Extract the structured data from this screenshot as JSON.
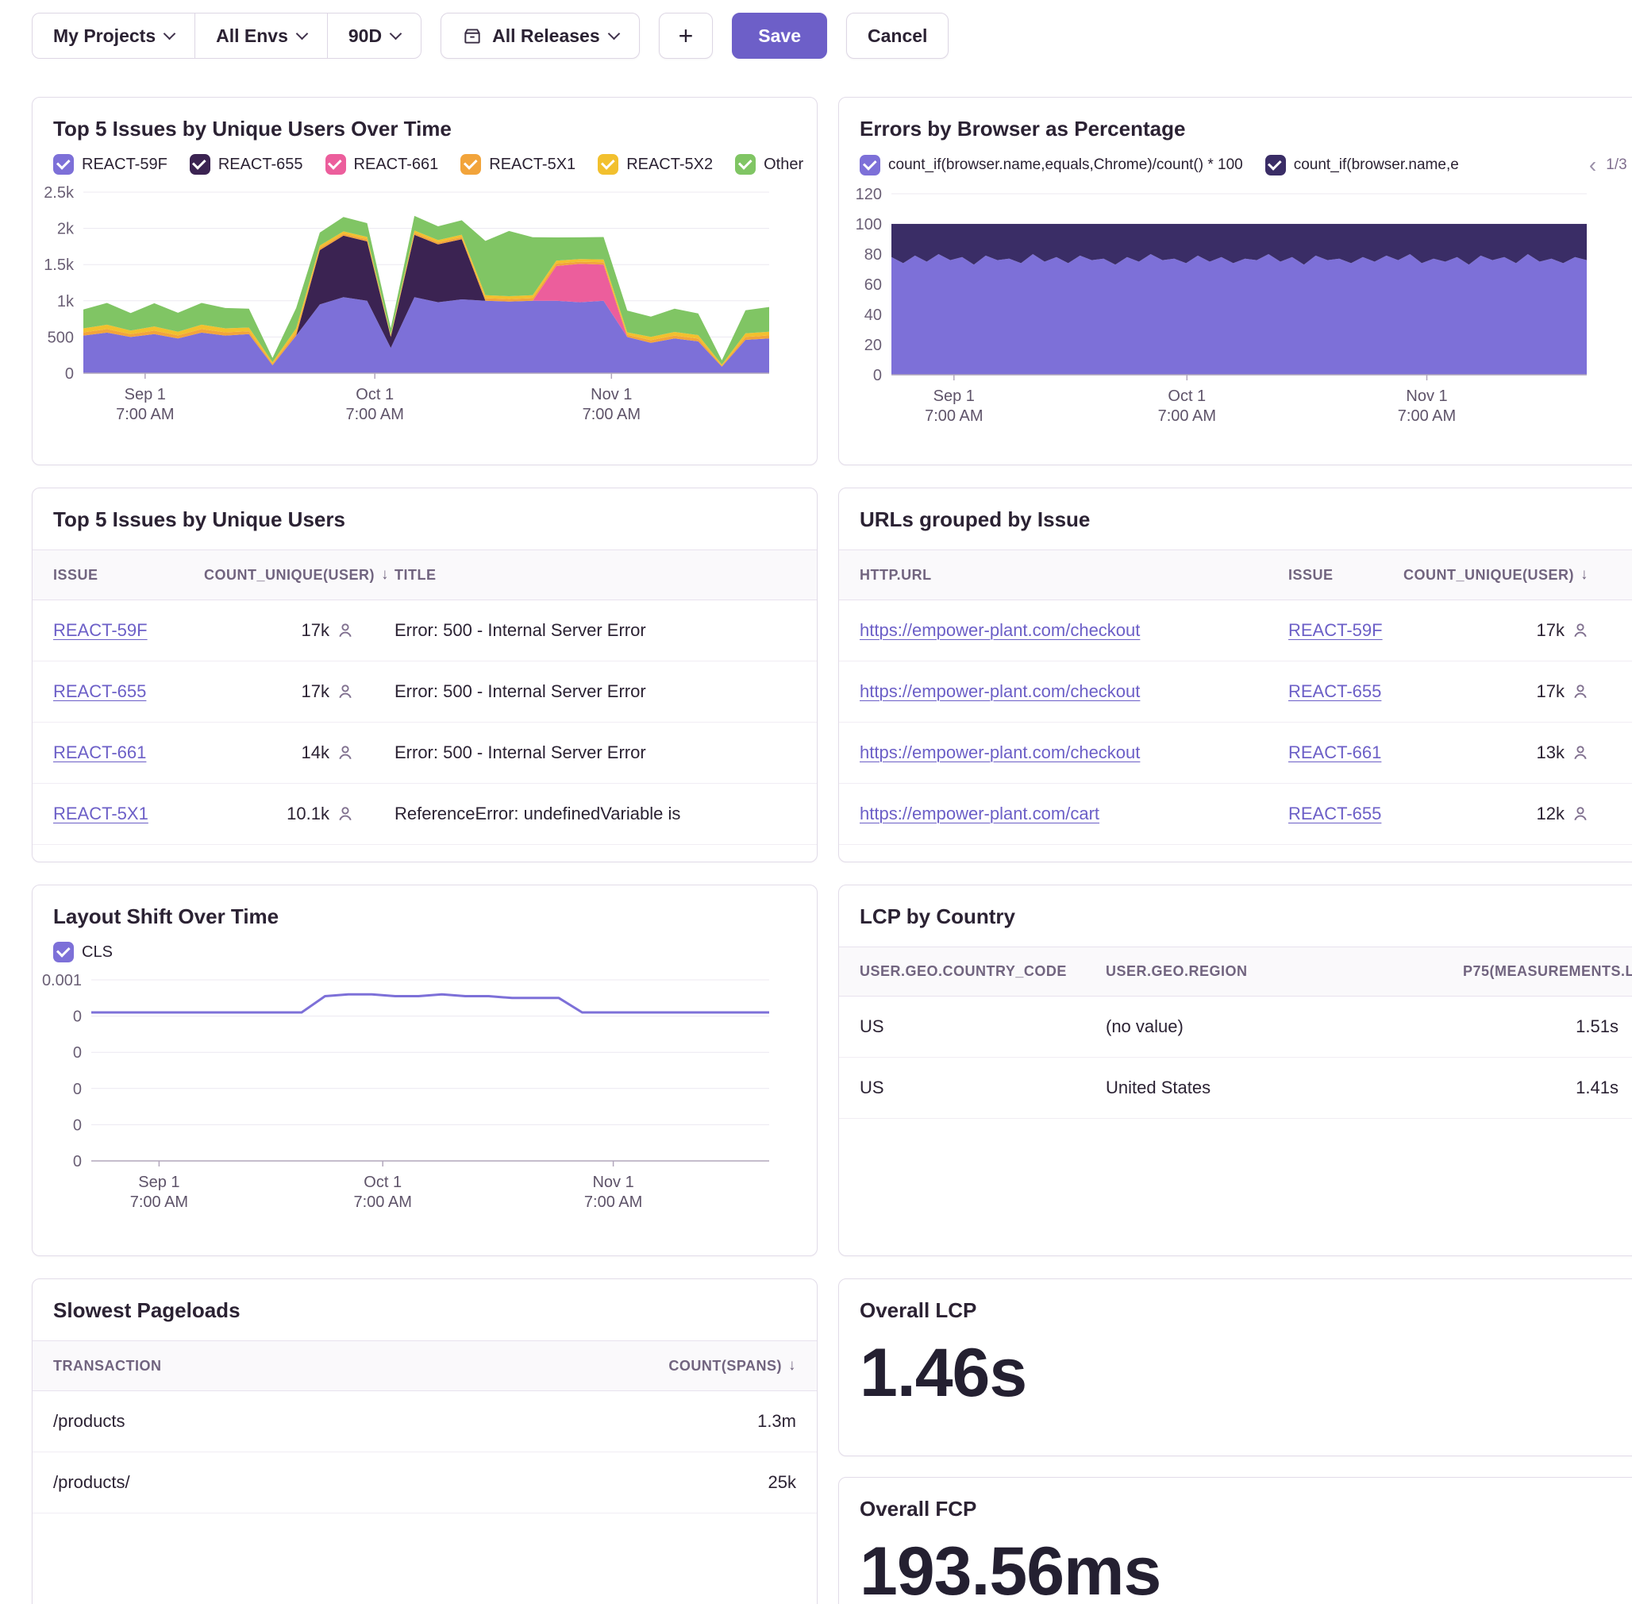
{
  "toolbar": {
    "project_filter": "My Projects",
    "env_filter": "All Envs",
    "date_range": "90D",
    "release_filter": "All Releases",
    "add_button": "+",
    "save_button": "Save",
    "cancel_button": "Cancel"
  },
  "widgets": {
    "issues_over_time": {
      "title": "Top 5 Issues by Unique Users Over Time"
    },
    "errors_by_browser": {
      "title": "Errors by Browser as Percentage",
      "pager": {
        "prev": "‹",
        "page": "1/3",
        "next": "›"
      }
    },
    "top_issues": {
      "title": "Top 5 Issues by Unique Users",
      "columns": {
        "issue": "ISSUE",
        "count": "COUNT_UNIQUE(USER)",
        "title": "TITLE"
      },
      "sort_arrow": "↓",
      "rows": [
        {
          "issue": "REACT-59F",
          "count": "17k",
          "error_title": "Error: 500 - Internal Server Error"
        },
        {
          "issue": "REACT-655",
          "count": "17k",
          "error_title": "Error: 500 - Internal Server Error"
        },
        {
          "issue": "REACT-661",
          "count": "14k",
          "error_title": "Error: 500 - Internal Server Error"
        },
        {
          "issue": "REACT-5X1",
          "count": "10.1k",
          "error_title": "ReferenceError: undefinedVariable is"
        }
      ]
    },
    "urls_by_issue": {
      "title": "URLs grouped by Issue",
      "columns": {
        "url": "HTTP.URL",
        "issue": "ISSUE",
        "count": "COUNT_UNIQUE(USER)"
      },
      "sort_arrow": "↓",
      "rows": [
        {
          "url": "https://empower-plant.com/checkout",
          "issue": "REACT-59F",
          "count": "17k"
        },
        {
          "url": "https://empower-plant.com/checkout",
          "issue": "REACT-655",
          "count": "17k"
        },
        {
          "url": "https://empower-plant.com/checkout",
          "issue": "REACT-661",
          "count": "13k"
        },
        {
          "url": "https://empower-plant.com/cart",
          "issue": "REACT-655",
          "count": "12k"
        }
      ]
    },
    "layout_shift": {
      "title": "Layout Shift Over Time"
    },
    "lcp_by_country": {
      "title": "LCP by Country",
      "columns": {
        "country": "USER.GEO.COUNTRY_CODE",
        "region": "USER.GEO.REGION",
        "p75": "P75(MEASUREMENTS.LCP)"
      },
      "rows": [
        {
          "country": "US",
          "region": "(no value)",
          "p75": "1.51s"
        },
        {
          "country": "US",
          "region": "United States",
          "p75": "1.41s"
        }
      ]
    },
    "slowest_pageloads": {
      "title": "Slowest Pageloads",
      "columns": {
        "transaction": "TRANSACTION",
        "count": "COUNT(SPANS)"
      },
      "sort_arrow": "↓",
      "rows": [
        {
          "transaction": "/products",
          "count": "1.3m"
        },
        {
          "transaction": "/products/",
          "count": "25k"
        }
      ]
    },
    "overall_lcp": {
      "title": "Overall LCP",
      "value": "1.46s"
    },
    "overall_fcp": {
      "title": "Overall FCP",
      "value": "193.56ms"
    }
  },
  "chart_data": [
    {
      "id": "issues_over_time",
      "type": "area",
      "stacked": true,
      "title": "Top 5 Issues by Unique Users Over Time",
      "ylim": [
        0,
        2500
      ],
      "y_ticks": [
        {
          "value": 0,
          "label": "0"
        },
        {
          "value": 500,
          "label": "500"
        },
        {
          "value": 1000,
          "label": "1k"
        },
        {
          "value": 1500,
          "label": "1.5k"
        },
        {
          "value": 2000,
          "label": "2k"
        },
        {
          "value": 2500,
          "label": "2.5k"
        }
      ],
      "x_ticks": [
        {
          "pos": 0.09,
          "label": [
            "Sep 1",
            "7:00 AM"
          ]
        },
        {
          "pos": 0.425,
          "label": [
            "Oct 1",
            "7:00 AM"
          ]
        },
        {
          "pos": 0.77,
          "label": [
            "Nov 1",
            "7:00 AM"
          ]
        }
      ],
      "series": [
        {
          "name": "REACT-59F",
          "color": "#7D70D8",
          "values": [
            520,
            560,
            500,
            540,
            480,
            560,
            520,
            540,
            110,
            520,
            950,
            1050,
            1000,
            350,
            1050,
            980,
            1020,
            1000,
            990,
            1000,
            1000,
            980,
            1000,
            500,
            420,
            480,
            440,
            90,
            460,
            480
          ]
        },
        {
          "name": "REACT-655",
          "color": "#3B2352",
          "values": [
            0,
            0,
            0,
            0,
            0,
            0,
            0,
            0,
            0,
            0,
            750,
            850,
            820,
            150,
            860,
            800,
            830,
            0,
            0,
            0,
            0,
            0,
            0,
            0,
            0,
            0,
            0,
            0,
            0,
            0
          ]
        },
        {
          "name": "REACT-661",
          "color": "#EC5E9C",
          "values": [
            0,
            0,
            0,
            0,
            0,
            0,
            0,
            0,
            0,
            0,
            0,
            0,
            0,
            0,
            0,
            0,
            0,
            0,
            0,
            0,
            480,
            530,
            500,
            0,
            0,
            0,
            0,
            0,
            0,
            0
          ]
        },
        {
          "name": "REACT-5X1",
          "color": "#F2A43B",
          "values": [
            45,
            50,
            40,
            48,
            42,
            50,
            45,
            40,
            20,
            45,
            30,
            28,
            30,
            15,
            30,
            28,
            30,
            35,
            34,
            36,
            35,
            30,
            32,
            30,
            36,
            40,
            38,
            14,
            40,
            42
          ]
        },
        {
          "name": "REACT-5X2",
          "color": "#F2C02E",
          "values": [
            55,
            60,
            50,
            58,
            52,
            60,
            55,
            50,
            22,
            55,
            32,
            30,
            32,
            16,
            32,
            30,
            32,
            42,
            40,
            42,
            40,
            36,
            38,
            35,
            46,
            50,
            48,
            15,
            50,
            52
          ]
        },
        {
          "name": "Other",
          "color": "#80C564",
          "values": [
            260,
            300,
            240,
            320,
            260,
            300,
            280,
            260,
            60,
            280,
            180,
            200,
            190,
            90,
            200,
            190,
            200,
            750,
            900,
            800,
            320,
            300,
            310,
            300,
            280,
            320,
            300,
            60,
            320,
            340
          ]
        }
      ]
    },
    {
      "id": "errors_by_browser",
      "type": "area",
      "stacked": true,
      "title": "Errors by Browser as Percentage",
      "ylim": [
        0,
        120
      ],
      "y_ticks": [
        {
          "value": 0,
          "label": "0"
        },
        {
          "value": 20,
          "label": "20"
        },
        {
          "value": 40,
          "label": "40"
        },
        {
          "value": 60,
          "label": "60"
        },
        {
          "value": 80,
          "label": "80"
        },
        {
          "value": 100,
          "label": "100"
        },
        {
          "value": 120,
          "label": "120"
        }
      ],
      "x_ticks": [
        {
          "pos": 0.09,
          "label": [
            "Sep 1",
            "7:00 AM"
          ]
        },
        {
          "pos": 0.425,
          "label": [
            "Oct 1",
            "7:00 AM"
          ]
        },
        {
          "pos": 0.77,
          "label": [
            "Nov 1",
            "7:00 AM"
          ]
        }
      ],
      "series": [
        {
          "name": "count_if(browser.name,equals,Chrome)/count() * 100",
          "color": "#7D70D8",
          "values": [
            78,
            74,
            79,
            75,
            80,
            76,
            78,
            73,
            79,
            76,
            77,
            74,
            80,
            75,
            78,
            74,
            79,
            76,
            77,
            73,
            78,
            75,
            80,
            76,
            77,
            74,
            79,
            75,
            78,
            74,
            77,
            76,
            80,
            75,
            78,
            73,
            79,
            76,
            77,
            74,
            78,
            75,
            79,
            76,
            80,
            74,
            77,
            75,
            78,
            73,
            79,
            76,
            78,
            74,
            80,
            75,
            77,
            74,
            78,
            76
          ]
        },
        {
          "name": "count_if(browser.name,e",
          "color": "#3A2D66",
          "values": [
            22,
            26,
            21,
            25,
            20,
            24,
            22,
            27,
            21,
            24,
            23,
            26,
            20,
            25,
            22,
            26,
            21,
            24,
            23,
            27,
            22,
            25,
            20,
            24,
            23,
            26,
            21,
            25,
            22,
            26,
            23,
            24,
            20,
            25,
            22,
            27,
            21,
            24,
            23,
            26,
            22,
            25,
            21,
            24,
            20,
            26,
            23,
            25,
            22,
            27,
            21,
            24,
            22,
            26,
            20,
            25,
            23,
            26,
            22,
            24
          ]
        }
      ]
    },
    {
      "id": "layout_shift",
      "type": "line",
      "stacked": false,
      "title": "Layout Shift Over Time",
      "ylim": [
        0,
        0.001
      ],
      "y_ticks": [
        {
          "value": 0.001,
          "label": "0.001"
        },
        {
          "value": 0.0008,
          "label": "0"
        },
        {
          "value": 0.0006,
          "label": "0"
        },
        {
          "value": 0.0004,
          "label": "0"
        },
        {
          "value": 0.0002,
          "label": "0"
        },
        {
          "value": 0,
          "label": "0"
        }
      ],
      "x_ticks": [
        {
          "pos": 0.1,
          "label": [
            "Sep 1",
            "7:00 AM"
          ]
        },
        {
          "pos": 0.43,
          "label": [
            "Oct 1",
            "7:00 AM"
          ]
        },
        {
          "pos": 0.77,
          "label": [
            "Nov 1",
            "7:00 AM"
          ]
        }
      ],
      "series": [
        {
          "name": "CLS",
          "color": "#7D70D8",
          "values": [
            0.00082,
            0.00082,
            0.00082,
            0.00082,
            0.00082,
            0.00082,
            0.00082,
            0.00082,
            0.00082,
            0.00082,
            0.00091,
            0.00092,
            0.00092,
            0.00091,
            0.00091,
            0.00092,
            0.00091,
            0.00091,
            0.0009,
            0.0009,
            0.0009,
            0.00082,
            0.00082,
            0.00082,
            0.00082,
            0.00082,
            0.00082,
            0.00082,
            0.00082,
            0.00082
          ]
        }
      ]
    }
  ]
}
